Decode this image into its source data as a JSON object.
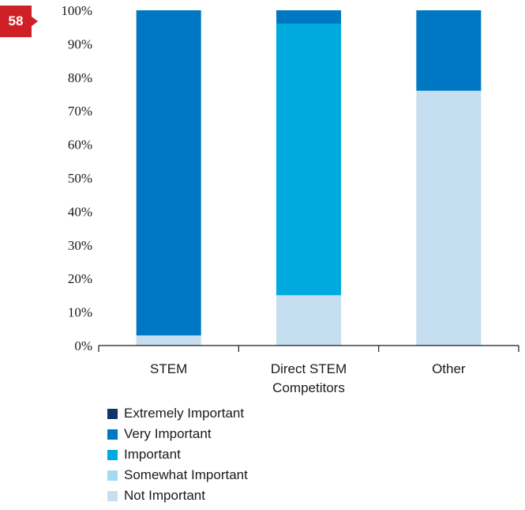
{
  "page_number": "58",
  "colors": {
    "badge": "#cf2027",
    "axis": "#1a1a1a",
    "series": [
      "#10346a",
      "#0077c2",
      "#00a9de",
      "#a5dbf1",
      "#c5dff0"
    ]
  },
  "chart_data": {
    "type": "bar",
    "stacked": true,
    "title": "",
    "xlabel": "",
    "ylabel": "",
    "ylim": [
      0,
      100
    ],
    "y_ticks": [
      "0%",
      "10%",
      "20%",
      "30%",
      "40%",
      "50%",
      "60%",
      "70%",
      "80%",
      "90%",
      "100%"
    ],
    "categories": [
      [
        "STEM"
      ],
      [
        "Direct STEM",
        "Competitors"
      ],
      [
        "Other"
      ]
    ],
    "series": [
      {
        "name": "Extremely Important",
        "values": [
          0,
          0,
          0
        ]
      },
      {
        "name": "Very Important",
        "values": [
          97,
          4,
          24
        ]
      },
      {
        "name": "Important",
        "values": [
          0,
          81,
          0
        ]
      },
      {
        "name": "Somewhat Important",
        "values": [
          0,
          0,
          0
        ]
      },
      {
        "name": "Not Important",
        "values": [
          3,
          15,
          76
        ]
      }
    ],
    "legend": "bottom",
    "grid": false
  }
}
